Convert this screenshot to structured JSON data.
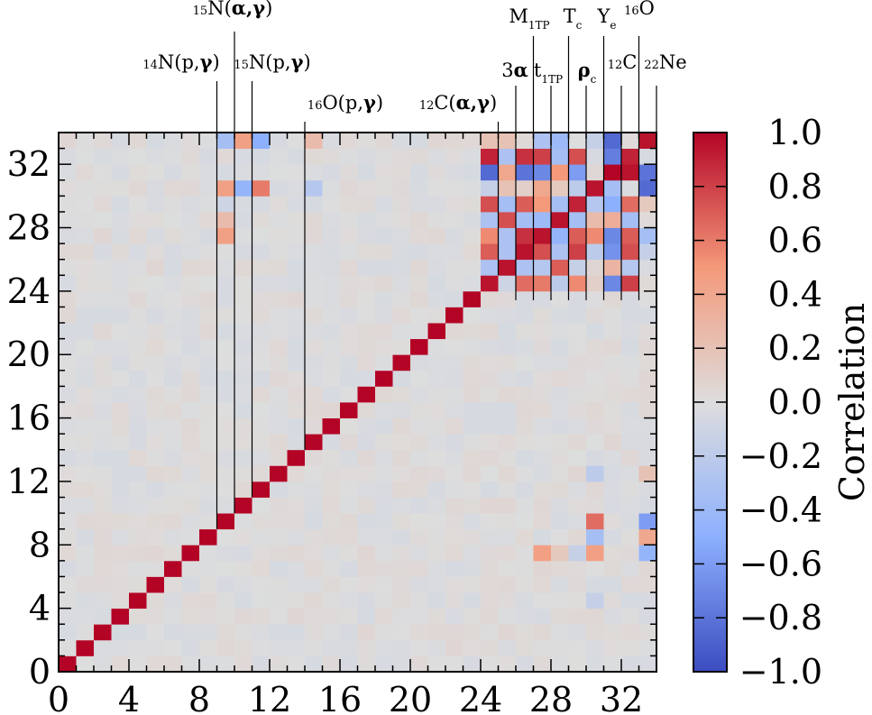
{
  "chart_data": {
    "type": "heatmap",
    "n": 34,
    "x_ticks": [
      "0",
      "4",
      "8",
      "12",
      "16",
      "20",
      "24",
      "28",
      "32"
    ],
    "y_ticks": [
      "0",
      "4",
      "8",
      "12",
      "16",
      "20",
      "24",
      "28",
      "32"
    ],
    "colorbar": {
      "label": "Correlation",
      "ticks": [
        "1.0",
        "0.8",
        "0.6",
        "0.4",
        "0.2",
        "0.0",
        "−0.2",
        "−0.4",
        "−0.6",
        "−0.8",
        "−1.0"
      ],
      "vmin": -1.0,
      "vmax": 1.0,
      "colormap": "coolwarm"
    },
    "annotations": [
      {
        "pre": "15",
        "main": "N(",
        "bold": "α,γ",
        "post": ")",
        "col": 10
      },
      {
        "pre": "14",
        "main": "N(p,",
        "bold": "γ",
        "post": ")",
        "col": 9
      },
      {
        "pre": "15",
        "main": "N(p,",
        "bold": "γ",
        "post": ")",
        "col": 11
      },
      {
        "pre": "16",
        "main": "O(p,",
        "bold": "γ",
        "post": ")",
        "col": 14
      },
      {
        "pre": "12",
        "main": "C(",
        "bold": "α,γ",
        "post": ")",
        "col": 25
      },
      {
        "main": "M",
        "sub": "1TP",
        "col": 27
      },
      {
        "main": "T",
        "sub": "c",
        "col": 30
      },
      {
        "main": "Y",
        "sub": "e",
        "col": 32
      },
      {
        "pre": "16",
        "main": "O",
        "col": 34
      },
      {
        "main": "3",
        "bold": "α",
        "col": 26
      },
      {
        "main": "t",
        "sub": "1TP",
        "col": 28
      },
      {
        "bold": "ρ",
        "sub": "c",
        "col": 31
      },
      {
        "pre": "12",
        "main": "C",
        "col": 33
      },
      {
        "pre": "22",
        "main": "Ne",
        "col": 34
      }
    ],
    "diagonal": 1.0,
    "background_noise": 0.05,
    "cells": [
      [
        9,
        33,
        -0.35
      ],
      [
        10,
        33,
        0.45
      ],
      [
        11,
        33,
        -0.5
      ],
      [
        14,
        33,
        0.25
      ],
      [
        9,
        30,
        0.45
      ],
      [
        10,
        30,
        -0.45
      ],
      [
        11,
        30,
        0.6
      ],
      [
        14,
        30,
        -0.25
      ],
      [
        9,
        29,
        -0.1
      ],
      [
        9,
        28,
        0.25
      ],
      [
        9,
        27,
        0.45
      ],
      [
        24,
        33,
        0.2
      ],
      [
        25,
        33,
        0.2
      ],
      [
        27,
        33,
        -0.3
      ],
      [
        28,
        33,
        -0.4
      ],
      [
        30,
        33,
        -0.15
      ],
      [
        31,
        33,
        -0.85
      ],
      [
        33,
        33,
        0.95
      ],
      [
        24,
        32,
        0.9
      ],
      [
        25,
        32,
        -0.3
      ],
      [
        26,
        32,
        0.85
      ],
      [
        27,
        32,
        0.8
      ],
      [
        28,
        32,
        -0.35
      ],
      [
        29,
        32,
        0.75
      ],
      [
        31,
        32,
        -0.75
      ],
      [
        32,
        32,
        0.9
      ],
      [
        24,
        31,
        -0.85
      ],
      [
        25,
        31,
        0.4
      ],
      [
        26,
        31,
        -0.8
      ],
      [
        27,
        31,
        -0.7
      ],
      [
        28,
        31,
        0.5
      ],
      [
        29,
        31,
        -0.6
      ],
      [
        32,
        31,
        0.95
      ],
      [
        33,
        31,
        -0.8
      ],
      [
        24,
        30,
        -0.15
      ],
      [
        25,
        30,
        0.2
      ],
      [
        26,
        30,
        0.1
      ],
      [
        27,
        30,
        0.4
      ],
      [
        28,
        30,
        0.15
      ],
      [
        29,
        30,
        -0.2
      ],
      [
        30,
        30,
        0.95
      ],
      [
        31,
        30,
        -0.35
      ],
      [
        33,
        30,
        -0.85
      ],
      [
        24,
        29,
        0.75
      ],
      [
        25,
        29,
        -0.35
      ],
      [
        26,
        29,
        0.7
      ],
      [
        27,
        29,
        0.5
      ],
      [
        28,
        29,
        -0.35
      ],
      [
        29,
        29,
        0.9
      ],
      [
        30,
        29,
        -0.25
      ],
      [
        31,
        29,
        -0.5
      ],
      [
        32,
        29,
        0.65
      ],
      [
        33,
        29,
        0.15
      ],
      [
        24,
        28,
        -0.3
      ],
      [
        25,
        28,
        0.75
      ],
      [
        26,
        28,
        -0.35
      ],
      [
        27,
        28,
        -0.4
      ],
      [
        28,
        28,
        0.95
      ],
      [
        29,
        28,
        -0.35
      ],
      [
        30,
        28,
        0.25
      ],
      [
        31,
        28,
        0.35
      ],
      [
        32,
        28,
        -0.35
      ],
      [
        24,
        27,
        0.55
      ],
      [
        25,
        27,
        -0.3
      ],
      [
        26,
        27,
        0.85
      ],
      [
        27,
        27,
        0.95
      ],
      [
        28,
        27,
        -0.45
      ],
      [
        29,
        27,
        0.7
      ],
      [
        30,
        27,
        0.55
      ],
      [
        31,
        27,
        -0.7
      ],
      [
        32,
        27,
        0.7
      ],
      [
        33,
        27,
        -0.35
      ],
      [
        24,
        26,
        0.7
      ],
      [
        25,
        26,
        -0.3
      ],
      [
        26,
        26,
        0.95
      ],
      [
        27,
        26,
        0.75
      ],
      [
        28,
        26,
        -0.3
      ],
      [
        29,
        26,
        0.8
      ],
      [
        30,
        26,
        -0.2
      ],
      [
        31,
        26,
        -0.65
      ],
      [
        32,
        26,
        0.75
      ],
      [
        33,
        26,
        -0.15
      ],
      [
        24,
        25,
        -0.3
      ],
      [
        25,
        25,
        0.95
      ],
      [
        26,
        25,
        -0.3
      ],
      [
        27,
        25,
        -0.25
      ],
      [
        28,
        25,
        0.7
      ],
      [
        29,
        25,
        -0.15
      ],
      [
        30,
        25,
        0.05
      ],
      [
        31,
        25,
        0.3
      ],
      [
        32,
        25,
        -0.25
      ],
      [
        24,
        24,
        0.95
      ],
      [
        25,
        24,
        -0.1
      ],
      [
        26,
        24,
        0.65
      ],
      [
        27,
        24,
        0.6
      ],
      [
        28,
        24,
        -0.2
      ],
      [
        29,
        24,
        0.55
      ],
      [
        30,
        24,
        0.1
      ],
      [
        31,
        24,
        -0.7
      ],
      [
        32,
        24,
        0.8
      ],
      [
        30,
        12,
        -0.2
      ],
      [
        33,
        12,
        0.2
      ],
      [
        30,
        9,
        0.65
      ],
      [
        33,
        9,
        -0.6
      ],
      [
        30,
        8,
        -0.35
      ],
      [
        33,
        8,
        0.4
      ],
      [
        27,
        7,
        0.45
      ],
      [
        28,
        7,
        0.15
      ],
      [
        29,
        7,
        -0.15
      ],
      [
        30,
        7,
        0.45
      ],
      [
        33,
        7,
        -0.45
      ],
      [
        30,
        4,
        -0.15
      ]
    ]
  }
}
